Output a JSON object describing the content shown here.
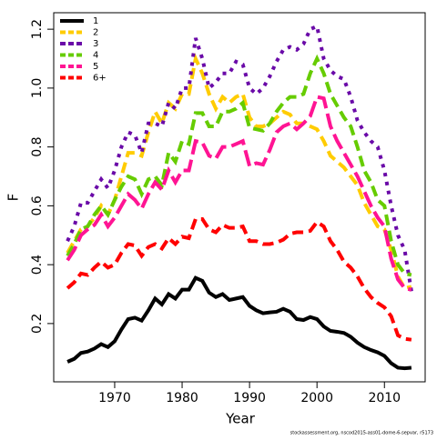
{
  "chart_data": {
    "type": "line",
    "x_label": "Year",
    "y_label": "F",
    "caption": "stockassessment.org, nscod2015-ass01-dome-6-sepvar, r5173",
    "x": [
      1963,
      1964,
      1965,
      1966,
      1967,
      1968,
      1969,
      1970,
      1971,
      1972,
      1973,
      1974,
      1975,
      1976,
      1977,
      1978,
      1979,
      1980,
      1981,
      1982,
      1983,
      1984,
      1985,
      1986,
      1987,
      1988,
      1989,
      1990,
      1991,
      1992,
      1993,
      1994,
      1995,
      1996,
      1997,
      1998,
      1999,
      2000,
      2001,
      2002,
      2003,
      2004,
      2005,
      2006,
      2007,
      2008,
      2009,
      2010,
      2011,
      2012,
      2013,
      2014
    ],
    "series": [
      {
        "name": "1",
        "color": "#000000",
        "line_style": "solid",
        "values": [
          0.07,
          0.08,
          0.1,
          0.105,
          0.115,
          0.13,
          0.12,
          0.14,
          0.18,
          0.215,
          0.22,
          0.21,
          0.245,
          0.285,
          0.265,
          0.3,
          0.285,
          0.315,
          0.315,
          0.355,
          0.345,
          0.305,
          0.29,
          0.3,
          0.28,
          0.285,
          0.29,
          0.26,
          0.245,
          0.235,
          0.238,
          0.24,
          0.25,
          0.24,
          0.215,
          0.212,
          0.222,
          0.215,
          0.19,
          0.175,
          0.172,
          0.168,
          0.155,
          0.135,
          0.12,
          0.11,
          0.102,
          0.09,
          0.065,
          0.05,
          0.048,
          0.05
        ]
      },
      {
        "name": "2",
        "color": "#ffcc00",
        "line_style": "dashed",
        "values": [
          0.44,
          0.48,
          0.52,
          0.53,
          0.56,
          0.6,
          0.57,
          0.62,
          0.7,
          0.78,
          0.78,
          0.77,
          0.85,
          0.92,
          0.88,
          0.95,
          0.93,
          0.98,
          0.98,
          1.1,
          1.05,
          0.98,
          0.93,
          0.97,
          0.95,
          0.97,
          0.98,
          0.9,
          0.87,
          0.87,
          0.88,
          0.9,
          0.92,
          0.91,
          0.88,
          0.88,
          0.87,
          0.86,
          0.82,
          0.77,
          0.75,
          0.73,
          0.7,
          0.67,
          0.61,
          0.57,
          0.53,
          0.52,
          0.45,
          0.36,
          0.32,
          0.325
        ]
      },
      {
        "name": "3",
        "color": "#6a0aa8",
        "line_style": "dotted",
        "values": [
          0.48,
          0.53,
          0.61,
          0.61,
          0.65,
          0.69,
          0.66,
          0.72,
          0.8,
          0.85,
          0.84,
          0.78,
          0.88,
          0.88,
          0.87,
          0.95,
          0.93,
          1.0,
          1.0,
          1.17,
          1.1,
          1.0,
          1.02,
          1.05,
          1.05,
          1.09,
          1.08,
          1.0,
          0.98,
          1.0,
          1.04,
          1.09,
          1.13,
          1.14,
          1.13,
          1.15,
          1.2,
          1.21,
          1.1,
          1.06,
          1.04,
          1.03,
          0.97,
          0.89,
          0.85,
          0.82,
          0.8,
          0.72,
          0.6,
          0.5,
          0.45,
          0.31
        ]
      },
      {
        "name": "4",
        "color": "#66cc00",
        "line_style": "dashed",
        "values": [
          0.43,
          0.47,
          0.52,
          0.53,
          0.57,
          0.6,
          0.57,
          0.62,
          0.665,
          0.7,
          0.69,
          0.64,
          0.69,
          0.7,
          0.67,
          0.78,
          0.75,
          0.82,
          0.81,
          0.915,
          0.915,
          0.87,
          0.87,
          0.92,
          0.92,
          0.93,
          0.95,
          0.865,
          0.86,
          0.855,
          0.88,
          0.92,
          0.95,
          0.97,
          0.97,
          0.98,
          1.05,
          1.1,
          1.05,
          0.98,
          0.94,
          0.9,
          0.87,
          0.8,
          0.72,
          0.68,
          0.62,
          0.6,
          0.48,
          0.4,
          0.37,
          0.365
        ]
      },
      {
        "name": "5",
        "color": "#ff1493",
        "line_style": "longdash",
        "values": [
          0.415,
          0.45,
          0.5,
          0.52,
          0.535,
          0.57,
          0.53,
          0.56,
          0.6,
          0.64,
          0.62,
          0.59,
          0.64,
          0.68,
          0.655,
          0.72,
          0.68,
          0.72,
          0.72,
          0.82,
          0.815,
          0.77,
          0.76,
          0.8,
          0.8,
          0.81,
          0.82,
          0.735,
          0.745,
          0.74,
          0.79,
          0.85,
          0.87,
          0.88,
          0.86,
          0.88,
          0.905,
          0.97,
          0.965,
          0.87,
          0.82,
          0.78,
          0.74,
          0.7,
          0.65,
          0.6,
          0.56,
          0.53,
          0.42,
          0.35,
          0.32,
          0.315
        ]
      },
      {
        "name": "6+",
        "color": "#ff0000",
        "line_style": "dashed",
        "values": [
          0.32,
          0.34,
          0.37,
          0.365,
          0.39,
          0.41,
          0.39,
          0.4,
          0.44,
          0.47,
          0.465,
          0.43,
          0.46,
          0.47,
          0.455,
          0.49,
          0.47,
          0.495,
          0.49,
          0.555,
          0.555,
          0.52,
          0.51,
          0.535,
          0.525,
          0.525,
          0.53,
          0.48,
          0.48,
          0.47,
          0.47,
          0.475,
          0.485,
          0.505,
          0.51,
          0.51,
          0.515,
          0.545,
          0.53,
          0.48,
          0.45,
          0.41,
          0.39,
          0.36,
          0.32,
          0.29,
          0.27,
          0.255,
          0.225,
          0.16,
          0.148,
          0.145
        ]
      }
    ],
    "xlim": [
      1960.96,
      2016.04
    ],
    "xticks": [
      1970,
      1980,
      1990,
      2000,
      2010
    ],
    "ylim": [
      0.002,
      1.256
    ],
    "yticks": [
      0.2,
      0.4,
      0.6,
      0.8,
      {
        "value": 1,
        "label": "1.0"
      },
      1.2
    ],
    "legend": "topleft"
  }
}
